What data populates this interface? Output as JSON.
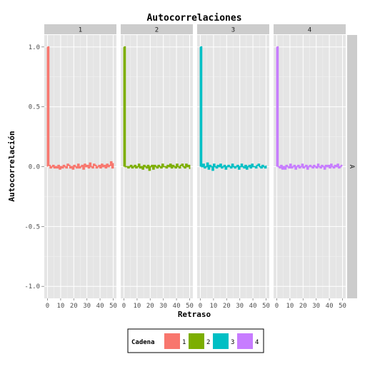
{
  "chart_data": {
    "type": "bar",
    "title": "Autocorrelaciones",
    "xlabel": "Retraso",
    "ylabel": "Autocorrelación",
    "xlim": [
      0,
      50
    ],
    "ylim": [
      -1.0,
      1.0
    ],
    "x_ticks": [
      "0",
      "10",
      "20",
      "30",
      "40",
      "50"
    ],
    "y_ticks": [
      "1.0",
      "0.5",
      "0.0",
      "-0.5",
      "-1.0"
    ],
    "y_tick_values": [
      1.0,
      0.5,
      0.0,
      -0.5,
      -1.0
    ],
    "grid": true,
    "row_strip": "A",
    "legend": {
      "title": "Cadena",
      "position": "bottom"
    },
    "panels": [
      {
        "label": "1",
        "color": "#F8766D",
        "values": [
          1.0,
          0.01,
          -0.01,
          0.0,
          0.01,
          -0.01,
          0.0,
          -0.01,
          0.01,
          -0.02,
          0.0,
          -0.01,
          0.01,
          0.0,
          -0.01,
          0.02,
          0.01,
          -0.01,
          0.0,
          -0.02,
          0.01,
          0.0,
          -0.01,
          0.02,
          -0.01,
          0.0,
          0.01,
          -0.02,
          0.02,
          0.0,
          0.01,
          -0.01,
          0.03,
          0.0,
          -0.01,
          0.02,
          0.01,
          -0.01,
          0.0,
          0.01,
          -0.01,
          0.02,
          0.0,
          0.01,
          -0.01,
          0.02,
          0.0,
          0.01,
          0.04,
          -0.01,
          0.03
        ]
      },
      {
        "label": "2",
        "color": "#7CAE00",
        "values": [
          1.0,
          0.0,
          0.0,
          -0.01,
          0.0,
          0.01,
          -0.01,
          0.0,
          0.01,
          -0.01,
          0.0,
          0.02,
          -0.01,
          0.0,
          -0.02,
          0.01,
          0.0,
          -0.01,
          0.01,
          -0.03,
          0.0,
          0.01,
          -0.02,
          0.01,
          0.0,
          -0.01,
          0.01,
          0.0,
          -0.01,
          0.02,
          0.0,
          0.0,
          -0.01,
          0.01,
          0.0,
          0.02,
          -0.01,
          0.01,
          0.0,
          -0.01,
          0.02,
          0.0,
          -0.01,
          0.01,
          0.02,
          0.0,
          -0.01,
          0.02,
          0.0,
          0.01,
          -0.02
        ]
      },
      {
        "label": "3",
        "color": "#00BFC4",
        "values": [
          1.0,
          0.0,
          0.02,
          -0.01,
          0.0,
          0.03,
          -0.02,
          0.01,
          0.0,
          -0.03,
          0.02,
          0.0,
          -0.01,
          0.01,
          0.0,
          0.02,
          -0.01,
          0.0,
          0.01,
          -0.02,
          0.0,
          0.01,
          0.0,
          -0.01,
          0.02,
          0.0,
          -0.01,
          0.0,
          0.01,
          -0.02,
          0.0,
          0.02,
          0.0,
          -0.01,
          0.01,
          -0.02,
          0.0,
          0.01,
          -0.01,
          0.02,
          0.0,
          0.0,
          -0.01,
          0.01,
          0.02,
          0.0,
          -0.01,
          0.01,
          0.0,
          -0.01,
          0.01
        ]
      },
      {
        "label": "4",
        "color": "#C77CFF",
        "values": [
          1.0,
          0.0,
          -0.01,
          0.01,
          -0.02,
          0.0,
          -0.02,
          0.01,
          0.0,
          -0.01,
          0.02,
          -0.01,
          0.0,
          0.01,
          -0.02,
          0.0,
          0.01,
          -0.01,
          0.0,
          0.02,
          -0.01,
          0.0,
          0.01,
          -0.02,
          0.0,
          0.01,
          0.0,
          -0.01,
          0.01,
          0.0,
          -0.01,
          0.02,
          0.0,
          -0.01,
          0.01,
          0.0,
          -0.02,
          0.01,
          0.0,
          0.01,
          -0.01,
          0.02,
          0.0,
          -0.01,
          0.01,
          0.0,
          0.02,
          -0.01,
          0.0,
          0.01,
          0.01
        ]
      }
    ]
  }
}
